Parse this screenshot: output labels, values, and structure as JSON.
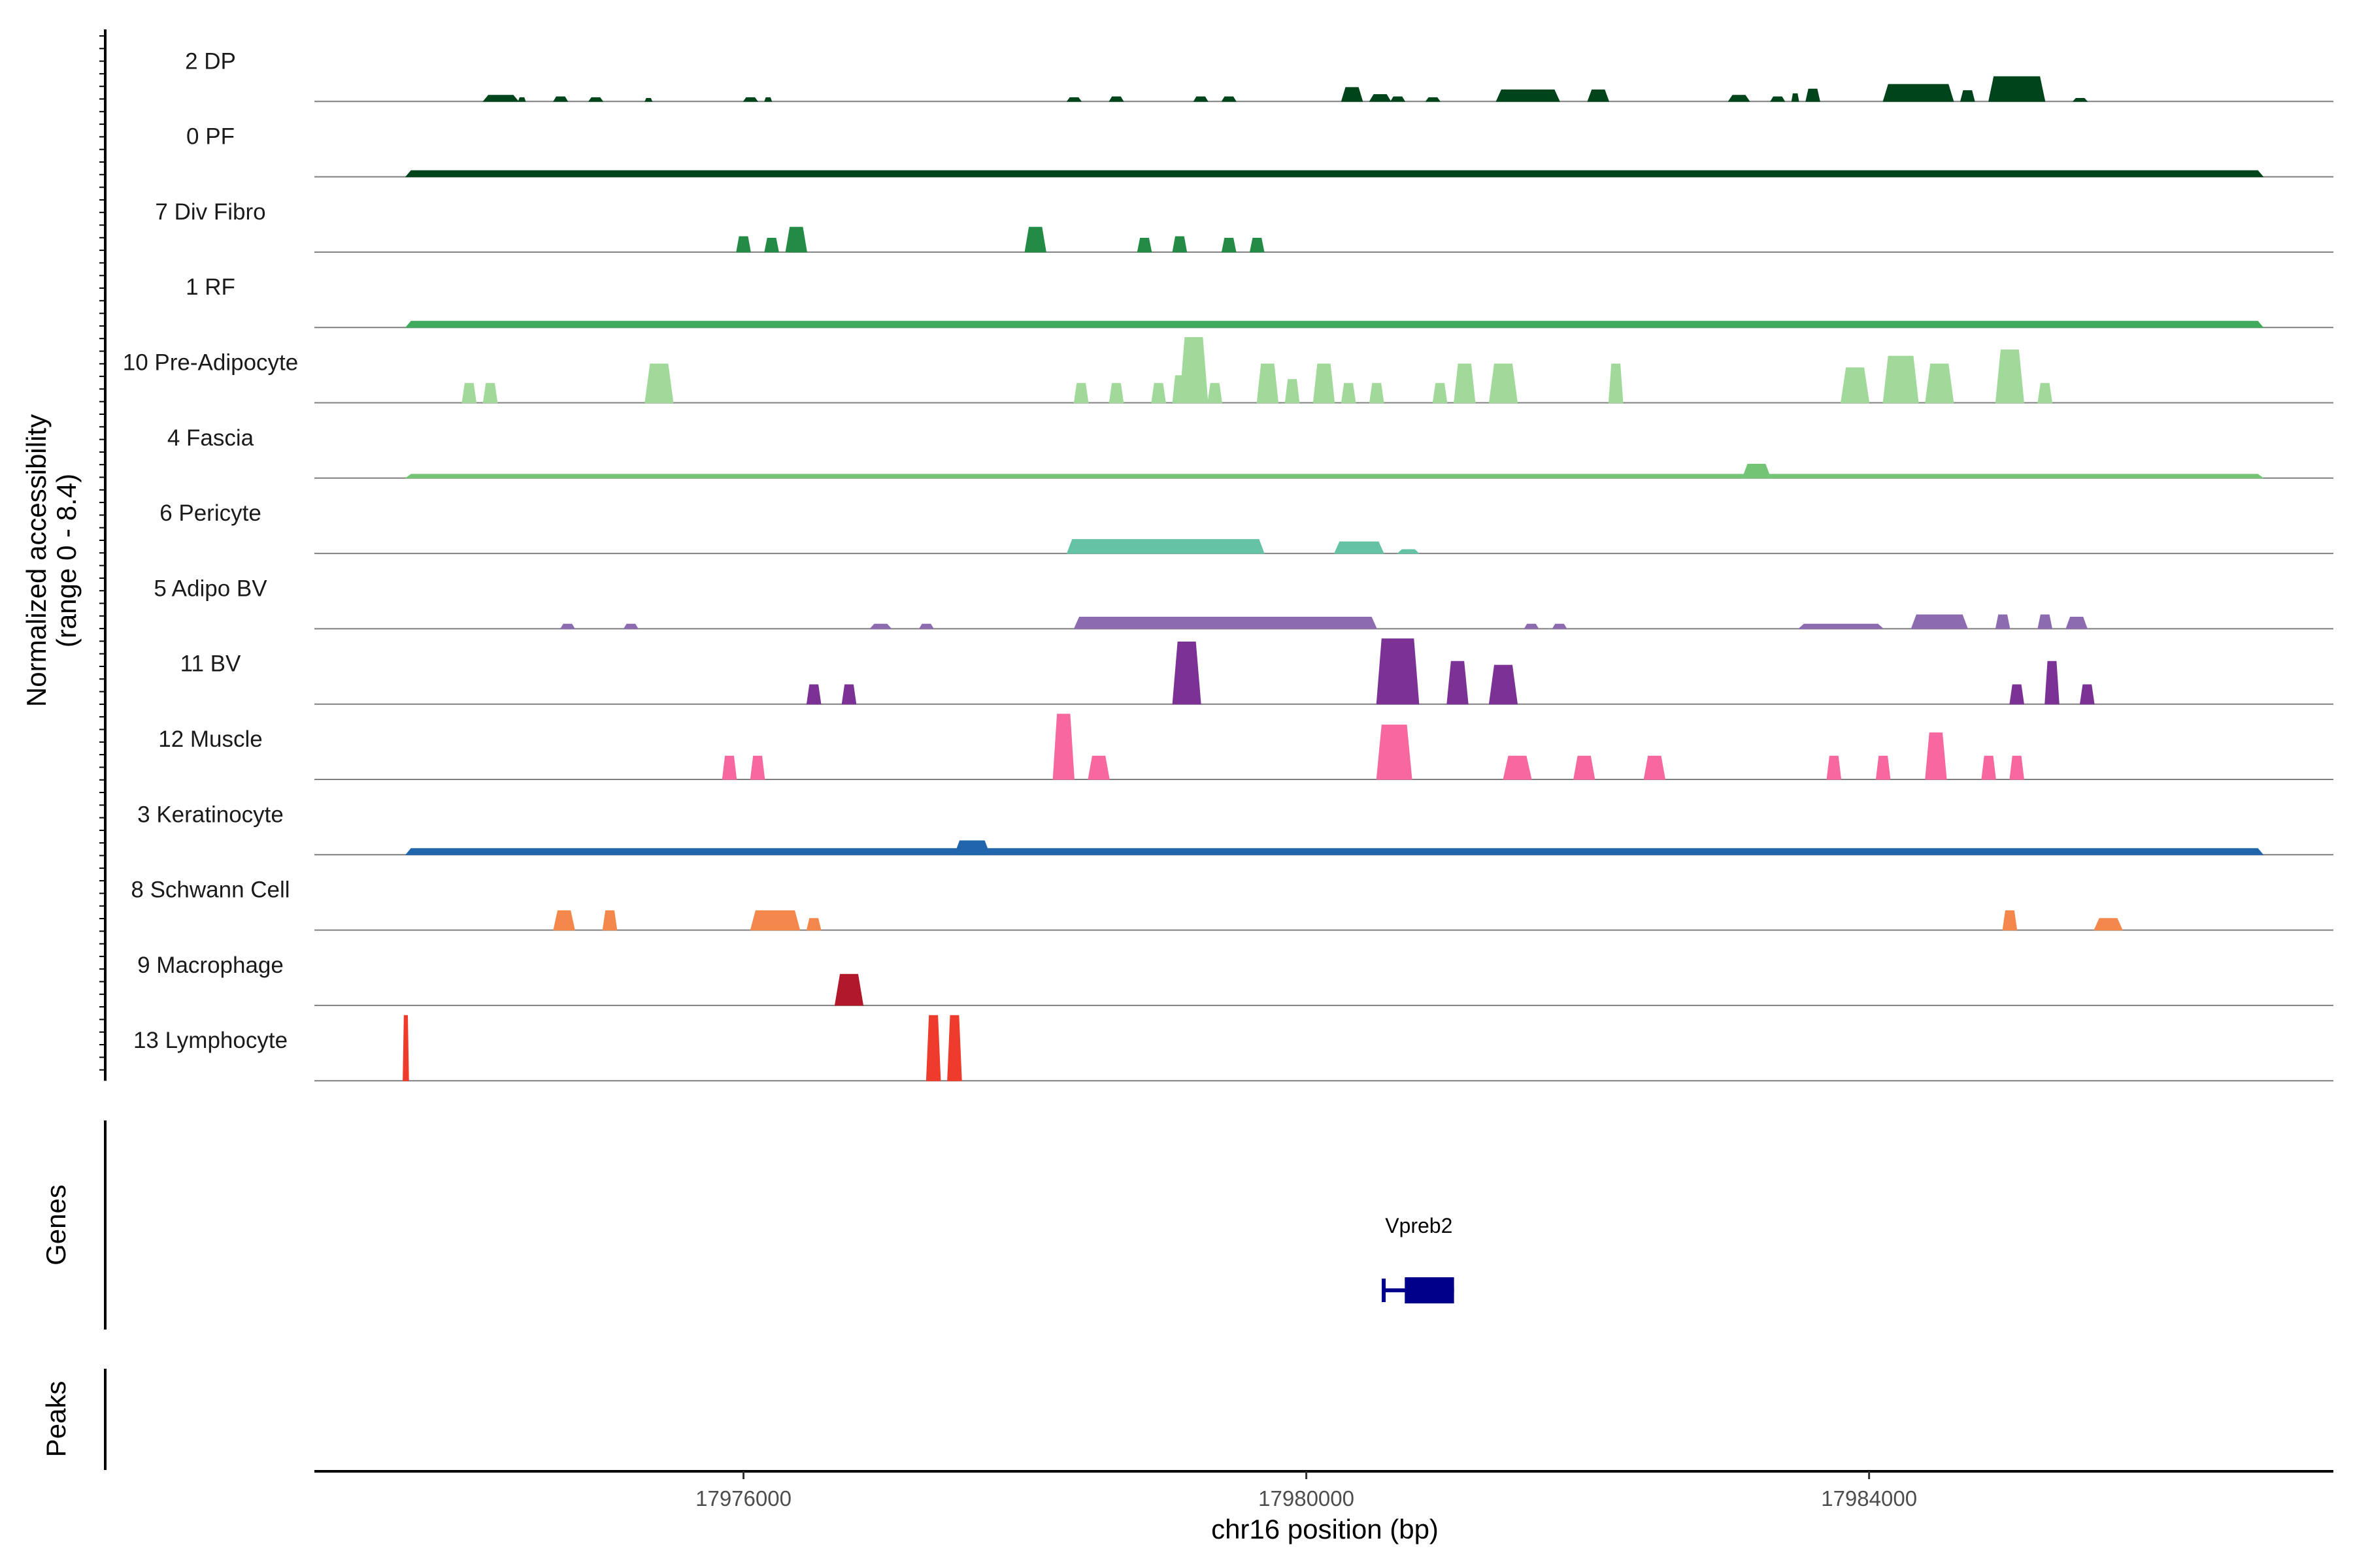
{
  "chart_data": {
    "type": "area",
    "title": "",
    "ylabel": "Normalized accessibility",
    "ylabel_range": "(range 0 - 8.4)",
    "y_range": [
      0,
      8.4
    ],
    "xlabel": "chr16 position (bp)",
    "x_range": [
      17972950,
      17987300
    ],
    "x_ticks": [
      17976000,
      17980000,
      17984000
    ],
    "x_tick_labels": [
      "17976000",
      "17980000",
      "17984000"
    ],
    "tracks_label": "Genes",
    "peaks_label": "Peaks",
    "gene": {
      "name": "Vpreb2",
      "start": 17980550,
      "end": 17981050,
      "exon_start": 17980700,
      "exon_end": 17981050
    },
    "series": [
      {
        "name": "2 DP",
        "color": "#00441b",
        "peaks": [
          [
            17974150,
            17974400,
            0.8
          ],
          [
            17974400,
            17974450,
            0.5
          ],
          [
            17974650,
            17974750,
            0.6
          ],
          [
            17974900,
            17975000,
            0.5
          ],
          [
            17975300,
            17975350,
            0.4
          ],
          [
            17976000,
            17976100,
            0.5
          ],
          [
            17976150,
            17976200,
            0.5
          ],
          [
            17978300,
            17978400,
            0.5
          ],
          [
            17978600,
            17978700,
            0.6
          ],
          [
            17979200,
            17979300,
            0.6
          ],
          [
            17979400,
            17979500,
            0.6
          ],
          [
            17980250,
            17980400,
            1.8
          ],
          [
            17980450,
            17980600,
            0.9
          ],
          [
            17980600,
            17980700,
            0.6
          ],
          [
            17980850,
            17980950,
            0.5
          ],
          [
            17981350,
            17981800,
            1.5
          ],
          [
            17982000,
            17982150,
            1.5
          ],
          [
            17983000,
            17983150,
            0.8
          ],
          [
            17983300,
            17983400,
            0.6
          ],
          [
            17983450,
            17983500,
            1.0
          ],
          [
            17983550,
            17983650,
            1.6
          ],
          [
            17984100,
            17984600,
            2.2
          ],
          [
            17984650,
            17984750,
            1.4
          ],
          [
            17984850,
            17985250,
            3.2
          ],
          [
            17985450,
            17985550,
            0.4
          ]
        ]
      },
      {
        "name": "0 PF",
        "color": "#00441b",
        "peaks": [
          [
            17973600,
            17986800,
            0.8
          ]
        ]
      },
      {
        "name": "7 Div Fibro",
        "color": "#238b45",
        "peaks": [
          [
            17975950,
            17976050,
            2.0
          ],
          [
            17976150,
            17976250,
            1.8
          ],
          [
            17976300,
            17976450,
            3.2
          ],
          [
            17978000,
            17978150,
            3.2
          ],
          [
            17978800,
            17978900,
            1.8
          ],
          [
            17979050,
            17979150,
            2.0
          ],
          [
            17979400,
            17979500,
            1.8
          ],
          [
            17979600,
            17979700,
            1.8
          ]
        ]
      },
      {
        "name": "1 RF",
        "color": "#41ab5d",
        "peaks": [
          [
            17973600,
            17986800,
            0.8
          ]
        ]
      },
      {
        "name": "10 Pre-Adipocyte",
        "color": "#a1d99b",
        "peaks": [
          [
            17974000,
            17974100,
            2.5
          ],
          [
            17974150,
            17974250,
            2.5
          ],
          [
            17975300,
            17975500,
            5.0
          ],
          [
            17978350,
            17978450,
            2.5
          ],
          [
            17978600,
            17978700,
            2.5
          ],
          [
            17978900,
            17979000,
            2.5
          ],
          [
            17979050,
            17979150,
            3.5
          ],
          [
            17979100,
            17979300,
            8.4
          ],
          [
            17979300,
            17979400,
            2.5
          ],
          [
            17979650,
            17979800,
            5.0
          ],
          [
            17979850,
            17979950,
            3.0
          ],
          [
            17980050,
            17980200,
            5.0
          ],
          [
            17980250,
            17980350,
            2.5
          ],
          [
            17980450,
            17980550,
            2.5
          ],
          [
            17980900,
            17981000,
            2.5
          ],
          [
            17981050,
            17981200,
            5.0
          ],
          [
            17981300,
            17981500,
            5.0
          ],
          [
            17982150,
            17982250,
            5.0
          ],
          [
            17983800,
            17984000,
            4.5
          ],
          [
            17984100,
            17984350,
            6.0
          ],
          [
            17984400,
            17984600,
            5.0
          ],
          [
            17984900,
            17985100,
            6.8
          ],
          [
            17985200,
            17985300,
            2.5
          ]
        ]
      },
      {
        "name": "4 Fascia",
        "color": "#74c476",
        "peaks": [
          [
            17973600,
            17986800,
            0.5
          ],
          [
            17983100,
            17983300,
            1.8
          ]
        ]
      },
      {
        "name": "6 Pericyte",
        "color": "#66c2a4",
        "peaks": [
          [
            17978300,
            17979700,
            1.8
          ],
          [
            17980200,
            17980550,
            1.5
          ],
          [
            17980650,
            17980800,
            0.5
          ]
        ]
      },
      {
        "name": "5 Adipo BV",
        "color": "#8c6bb1",
        "peaks": [
          [
            17974700,
            17974800,
            0.6
          ],
          [
            17975150,
            17975250,
            0.6
          ],
          [
            17976900,
            17977050,
            0.6
          ],
          [
            17977250,
            17977350,
            0.6
          ],
          [
            17978350,
            17980500,
            1.5
          ],
          [
            17981550,
            17981650,
            0.6
          ],
          [
            17981750,
            17981850,
            0.6
          ],
          [
            17983500,
            17984100,
            0.6
          ],
          [
            17984300,
            17984700,
            1.8
          ],
          [
            17984900,
            17985000,
            1.8
          ],
          [
            17985200,
            17985300,
            1.8
          ],
          [
            17985400,
            17985550,
            1.5
          ]
        ]
      },
      {
        "name": "11 BV",
        "color": "#7b3294",
        "peaks": [
          [
            17976450,
            17976550,
            2.5
          ],
          [
            17976700,
            17976800,
            2.5
          ],
          [
            17979050,
            17979250,
            8.0
          ],
          [
            17980500,
            17980800,
            8.4
          ],
          [
            17981000,
            17981150,
            5.5
          ],
          [
            17981300,
            17981500,
            5.0
          ],
          [
            17985000,
            17985100,
            2.5
          ],
          [
            17985250,
            17985350,
            5.5
          ],
          [
            17985500,
            17985600,
            2.5
          ]
        ]
      },
      {
        "name": "12 Muscle",
        "color": "#f768a1",
        "peaks": [
          [
            17975850,
            17975950,
            3.0
          ],
          [
            17976050,
            17976150,
            3.0
          ],
          [
            17978200,
            17978350,
            8.4
          ],
          [
            17978450,
            17978600,
            3.0
          ],
          [
            17980500,
            17980750,
            7.0
          ],
          [
            17981400,
            17981600,
            3.0
          ],
          [
            17981900,
            17982050,
            3.0
          ],
          [
            17982400,
            17982550,
            3.0
          ],
          [
            17983700,
            17983800,
            3.0
          ],
          [
            17984050,
            17984150,
            3.0
          ],
          [
            17984400,
            17984550,
            6.0
          ],
          [
            17984800,
            17984900,
            3.0
          ],
          [
            17985000,
            17985100,
            3.0
          ]
        ]
      },
      {
        "name": "3 Keratinocyte",
        "color": "#2166ac",
        "peaks": [
          [
            17973600,
            17986800,
            0.8
          ],
          [
            17977500,
            17977750,
            1.8
          ]
        ]
      },
      {
        "name": "8 Schwann Cell",
        "color": "#f4874b",
        "peaks": [
          [
            17974650,
            17974800,
            2.5
          ],
          [
            17975000,
            17975100,
            2.5
          ],
          [
            17976050,
            17976400,
            2.5
          ],
          [
            17976450,
            17976550,
            1.5
          ],
          [
            17984950,
            17985050,
            2.5
          ],
          [
            17985600,
            17985800,
            1.5
          ]
        ]
      },
      {
        "name": "9 Macrophage",
        "color": "#b2182b",
        "peaks": [
          [
            17976650,
            17976850,
            4.0
          ]
        ]
      },
      {
        "name": "13 Lymphocyte",
        "color": "#ef3b2c",
        "peaks": [
          [
            17973580,
            17973620,
            8.4
          ],
          [
            17977300,
            17977400,
            8.4
          ],
          [
            17977450,
            17977550,
            8.4
          ]
        ]
      }
    ]
  }
}
